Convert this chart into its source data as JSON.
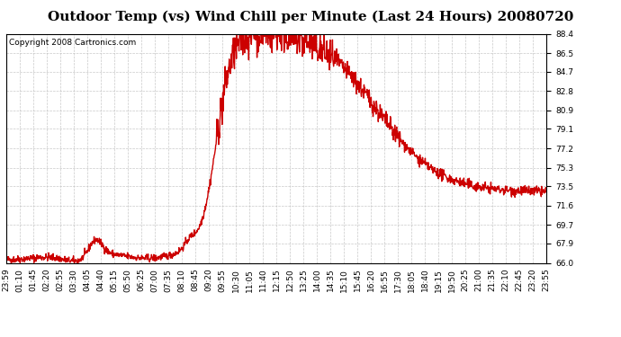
{
  "title": "Outdoor Temp (vs) Wind Chill per Minute (Last 24 Hours) 20080720",
  "copyright": "Copyright 2008 Cartronics.com",
  "line_color": "#cc0000",
  "background_color": "#ffffff",
  "grid_color": "#bbbbbb",
  "ylim": [
    66.0,
    88.4
  ],
  "yticks": [
    66.0,
    67.9,
    69.7,
    71.6,
    73.5,
    75.3,
    77.2,
    79.1,
    80.9,
    82.8,
    84.7,
    86.5,
    88.4
  ],
  "xtick_labels": [
    "23:59",
    "01:10",
    "01:45",
    "02:20",
    "02:55",
    "03:30",
    "04:05",
    "04:40",
    "05:15",
    "05:50",
    "06:25",
    "07:00",
    "07:35",
    "08:10",
    "08:45",
    "09:20",
    "09:55",
    "10:30",
    "11:05",
    "11:40",
    "12:15",
    "12:50",
    "13:25",
    "14:00",
    "14:35",
    "15:10",
    "15:45",
    "16:20",
    "16:55",
    "17:30",
    "18:05",
    "18:40",
    "19:15",
    "19:50",
    "20:25",
    "21:00",
    "21:35",
    "22:10",
    "22:45",
    "23:20",
    "23:55"
  ],
  "title_fontsize": 11,
  "copyright_fontsize": 6.5,
  "tick_fontsize": 6.5,
  "line_width": 1.0
}
